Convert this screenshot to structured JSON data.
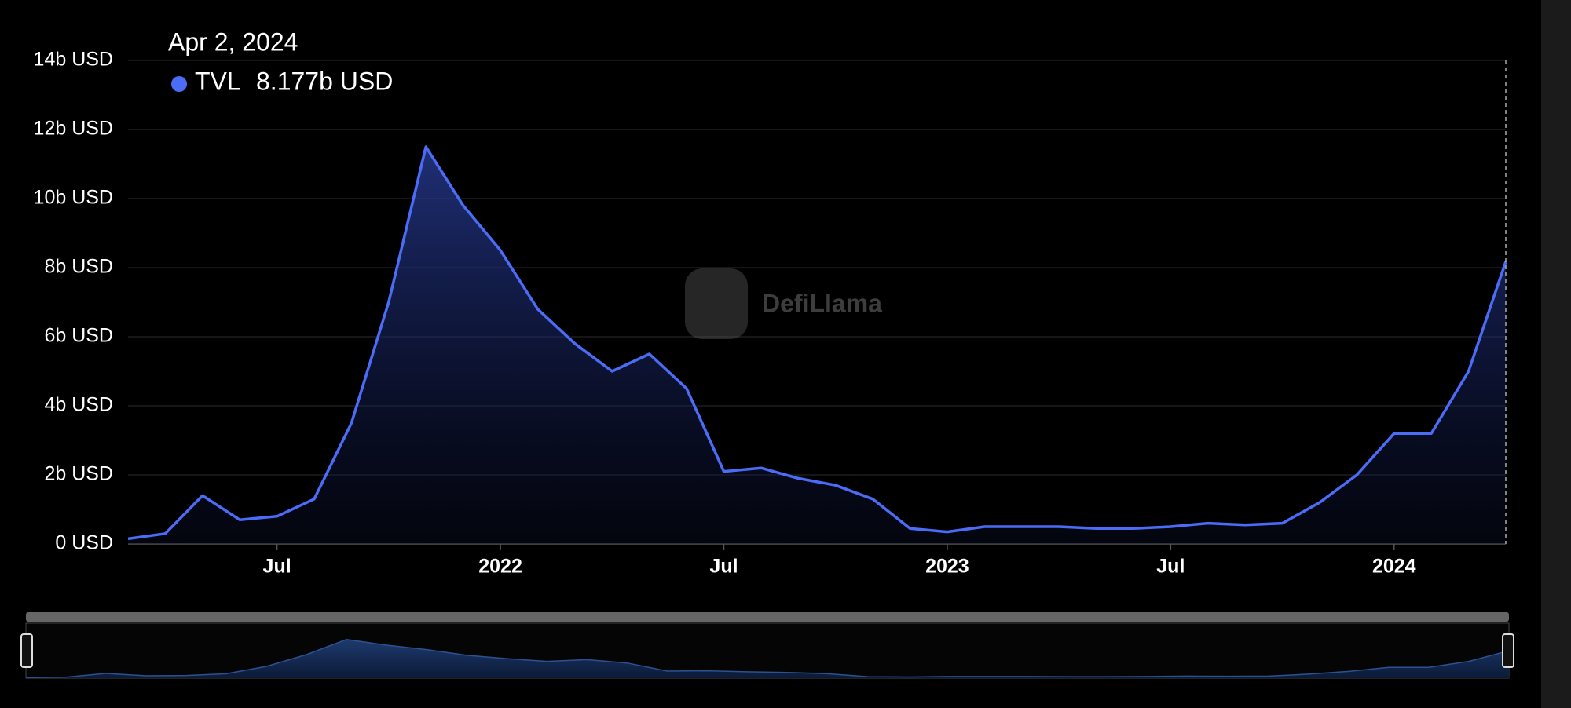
{
  "chart_data": {
    "type": "line",
    "x": [
      "2021-03",
      "2021-04",
      "2021-05",
      "2021-06",
      "2021-07",
      "2021-08",
      "2021-09",
      "2021-10",
      "2021-11",
      "2021-12",
      "2022-01",
      "2022-02",
      "2022-03",
      "2022-04",
      "2022-05",
      "2022-06",
      "2022-07",
      "2022-08",
      "2022-09",
      "2022-10",
      "2022-11",
      "2022-12",
      "2023-01",
      "2023-02",
      "2023-03",
      "2023-04",
      "2023-05",
      "2023-06",
      "2023-07",
      "2023-08",
      "2023-09",
      "2023-10",
      "2023-11",
      "2023-12",
      "2024-01",
      "2024-02",
      "2024-03",
      "2024-04"
    ],
    "series": [
      {
        "name": "TVL",
        "color": "#4a6cf7",
        "values": [
          0.15,
          0.3,
          1.4,
          0.7,
          0.8,
          1.3,
          3.5,
          7.0,
          11.5,
          9.8,
          8.5,
          6.8,
          5.8,
          5.0,
          5.5,
          4.5,
          2.1,
          2.2,
          1.9,
          1.7,
          1.3,
          0.45,
          0.35,
          0.5,
          0.5,
          0.5,
          0.45,
          0.45,
          0.5,
          0.6,
          0.55,
          0.6,
          1.2,
          2.0,
          3.2,
          3.2,
          5.0,
          8.177
        ]
      }
    ],
    "xlim": [
      "2021-03",
      "2024-04"
    ],
    "xticks": [
      {
        "value": "2021-07",
        "label": "Jul"
      },
      {
        "value": "2022-01",
        "label": "2022"
      },
      {
        "value": "2022-07",
        "label": "Jul"
      },
      {
        "value": "2023-01",
        "label": "2023"
      },
      {
        "value": "2023-07",
        "label": "Jul"
      },
      {
        "value": "2024-01",
        "label": "2024"
      }
    ],
    "ylim": [
      0,
      14
    ],
    "yticks": [
      {
        "value": 0,
        "label": "0 USD"
      },
      {
        "value": 2,
        "label": "2b USD"
      },
      {
        "value": 4,
        "label": "4b USD"
      },
      {
        "value": 6,
        "label": "6b USD"
      },
      {
        "value": 8,
        "label": "8b USD"
      },
      {
        "value": 10,
        "label": "10b USD"
      },
      {
        "value": 12,
        "label": "12b USD"
      },
      {
        "value": 14,
        "label": "14b USD"
      }
    ],
    "grid": true,
    "tooltip": {
      "date": "Apr 2, 2024",
      "value_label": "8.177b USD"
    },
    "watermark": "DefiLlama"
  }
}
